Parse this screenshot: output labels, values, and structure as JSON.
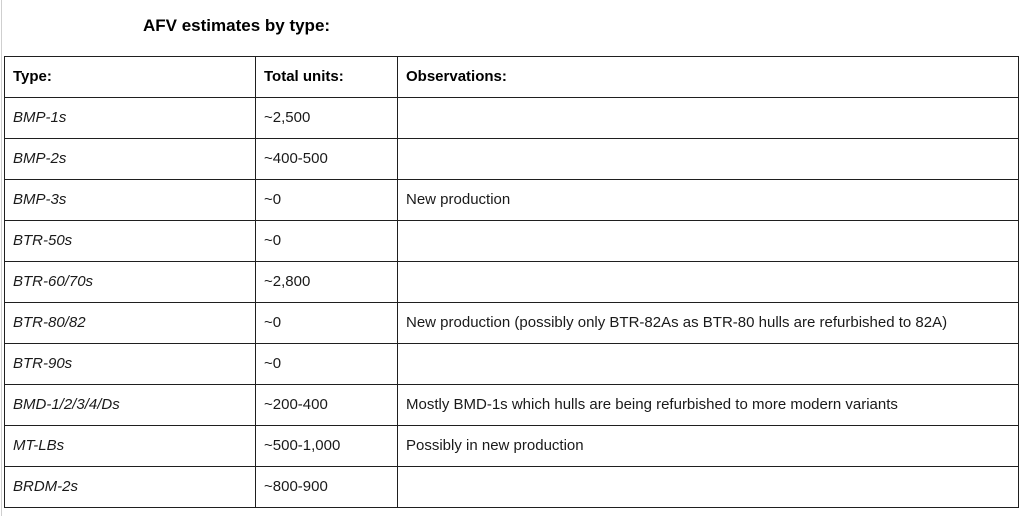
{
  "title": "AFV estimates by type:",
  "table": {
    "headers": {
      "type": "Type:",
      "units": "Total units:",
      "observations": "Observations:"
    },
    "rows": [
      {
        "type": "BMP-1s",
        "units": "~2,500",
        "obs": ""
      },
      {
        "type": "BMP-2s",
        "units": "~400-500",
        "obs": ""
      },
      {
        "type": "BMP-3s",
        "units": "~0",
        "obs": "New production"
      },
      {
        "type": "BTR-50s",
        "units": "~0",
        "obs": ""
      },
      {
        "type": "BTR-60/70s",
        "units": "~2,800",
        "obs": ""
      },
      {
        "type": "BTR-80/82",
        "units": "~0",
        "obs": "New production (possibly only BTR-82As as BTR-80 hulls are refurbished to 82A)"
      },
      {
        "type": "BTR-90s",
        "units": "~0",
        "obs": ""
      },
      {
        "type": "BMD-1/2/3/4/Ds",
        "units": "~200-400",
        "obs": "Mostly BMD-1s which hulls are being refurbished to more modern variants"
      },
      {
        "type": "MT-LBs",
        "units": "~500-1,000",
        "obs": "Possibly in new production"
      },
      {
        "type": "BRDM-2s",
        "units": "~800-900",
        "obs": ""
      }
    ]
  },
  "colors": {
    "table_border": "#1f1f1f",
    "text": "#1a1a1a",
    "title_text": "#000000",
    "page_gridline": "#cfcfcf",
    "background": "#ffffff"
  }
}
